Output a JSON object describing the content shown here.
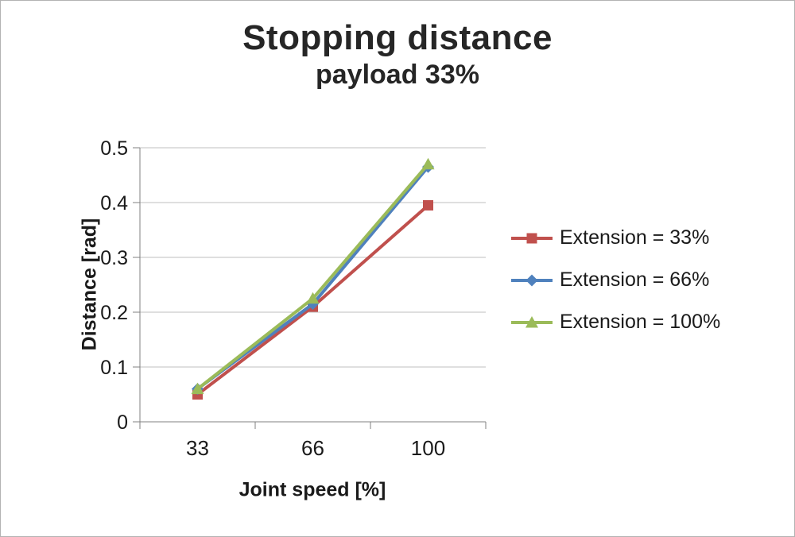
{
  "chart_data": {
    "type": "line",
    "title": "Stopping distance",
    "subtitle": "payload 33%",
    "xlabel": "Joint speed [%]",
    "ylabel": "Distance [rad]",
    "categories": [
      "33",
      "66",
      "100"
    ],
    "series": [
      {
        "name": "Extension = 33%",
        "marker": "square",
        "color": "#c0504d",
        "values": [
          0.05,
          0.21,
          0.395
        ]
      },
      {
        "name": "Extension = 66%",
        "marker": "diamond",
        "color": "#4f81bd",
        "values": [
          0.06,
          0.215,
          0.465
        ]
      },
      {
        "name": "Extension = 100%",
        "marker": "triangle",
        "color": "#9bbb59",
        "values": [
          0.06,
          0.225,
          0.47
        ]
      }
    ],
    "ylim": [
      0,
      0.5
    ],
    "yticks": [
      0,
      0.1,
      0.2,
      0.3,
      0.4,
      0.5
    ],
    "ytick_labels": [
      "0",
      "0.1",
      "0.2",
      "0.3",
      "0.4",
      "0.5"
    ],
    "grid": true,
    "legend_position": "right"
  }
}
